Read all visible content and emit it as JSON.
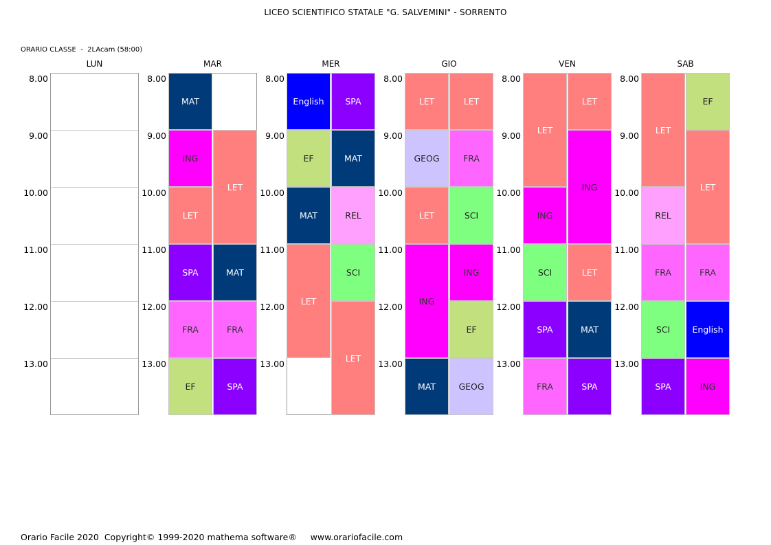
{
  "header": {
    "title": "LICEO SCIENTIFICO STATALE \"G. SALVEMINI\" - SORRENTO"
  },
  "class_info": {
    "label": "ORARIO CLASSE  -  2LAcam (58:00)"
  },
  "footer": {
    "text": "Orario Facile 2020  Copyright© 1999-2020 mathema software®     www.orariofacile.com"
  },
  "hours": [
    "8.00",
    "9.00",
    "10.00",
    "11.00",
    "12.00",
    "13.00"
  ],
  "subject_colors": {
    "MAT": {
      "bg": "#003a78",
      "fg": "#ffffff"
    },
    "ING": {
      "bg": "#ff00ff",
      "fg": "#333333"
    },
    "LET": {
      "bg": "#ff7f7f",
      "fg": "#ffffff"
    },
    "SPA": {
      "bg": "#8c00ff",
      "fg": "#ffffff"
    },
    "FRA": {
      "bg": "#ff66ff",
      "fg": "#333333"
    },
    "EF": {
      "bg": "#c2e07e",
      "fg": "#222222"
    },
    "English": {
      "bg": "#0000ff",
      "fg": "#ffffff"
    },
    "REL": {
      "bg": "#ffa0ff",
      "fg": "#222222"
    },
    "SCI": {
      "bg": "#7fff7f",
      "fg": "#222222"
    },
    "GEOG": {
      "bg": "#cdc4ff",
      "fg": "#222222"
    }
  },
  "days": [
    {
      "name": "LUN",
      "lessons": []
    },
    {
      "name": "MAR",
      "lessons": [
        {
          "subject": "MAT",
          "col": 0,
          "start": 0,
          "span": 1
        },
        {
          "subject": "ING",
          "col": 0,
          "start": 1,
          "span": 1
        },
        {
          "subject": "LET",
          "col": 1,
          "start": 1,
          "span": 2
        },
        {
          "subject": "LET",
          "col": 0,
          "start": 2,
          "span": 1
        },
        {
          "subject": "SPA",
          "col": 0,
          "start": 3,
          "span": 1
        },
        {
          "subject": "MAT",
          "col": 1,
          "start": 3,
          "span": 1
        },
        {
          "subject": "FRA",
          "col": 0,
          "start": 4,
          "span": 1
        },
        {
          "subject": "FRA",
          "col": 1,
          "start": 4,
          "span": 1
        },
        {
          "subject": "EF",
          "col": 0,
          "start": 5,
          "span": 1
        },
        {
          "subject": "SPA",
          "col": 1,
          "start": 5,
          "span": 1
        }
      ]
    },
    {
      "name": "MER",
      "lessons": [
        {
          "subject": "English",
          "col": 0,
          "start": 0,
          "span": 1
        },
        {
          "subject": "SPA",
          "col": 1,
          "start": 0,
          "span": 1
        },
        {
          "subject": "EF",
          "col": 0,
          "start": 1,
          "span": 1
        },
        {
          "subject": "MAT",
          "col": 1,
          "start": 1,
          "span": 1
        },
        {
          "subject": "MAT",
          "col": 0,
          "start": 2,
          "span": 1
        },
        {
          "subject": "REL",
          "col": 1,
          "start": 2,
          "span": 1
        },
        {
          "subject": "LET",
          "col": 0,
          "start": 3,
          "span": 2
        },
        {
          "subject": "SCI",
          "col": 1,
          "start": 3,
          "span": 1
        },
        {
          "subject": "LET",
          "col": 1,
          "start": 4,
          "span": 2
        }
      ]
    },
    {
      "name": "GIO",
      "lessons": [
        {
          "subject": "LET",
          "col": 0,
          "start": 0,
          "span": 1
        },
        {
          "subject": "LET",
          "col": 1,
          "start": 0,
          "span": 1
        },
        {
          "subject": "GEOG",
          "col": 0,
          "start": 1,
          "span": 1
        },
        {
          "subject": "FRA",
          "col": 1,
          "start": 1,
          "span": 1
        },
        {
          "subject": "LET",
          "col": 0,
          "start": 2,
          "span": 1
        },
        {
          "subject": "SCI",
          "col": 1,
          "start": 2,
          "span": 1
        },
        {
          "subject": "ING",
          "col": 0,
          "start": 3,
          "span": 2
        },
        {
          "subject": "ING",
          "col": 1,
          "start": 3,
          "span": 1
        },
        {
          "subject": "EF",
          "col": 1,
          "start": 4,
          "span": 1
        },
        {
          "subject": "MAT",
          "col": 0,
          "start": 5,
          "span": 1
        },
        {
          "subject": "GEOG",
          "col": 1,
          "start": 5,
          "span": 1
        }
      ]
    },
    {
      "name": "VEN",
      "lessons": [
        {
          "subject": "LET",
          "col": 0,
          "start": 0,
          "span": 2
        },
        {
          "subject": "LET",
          "col": 1,
          "start": 0,
          "span": 1
        },
        {
          "subject": "ING",
          "col": 1,
          "start": 1,
          "span": 2
        },
        {
          "subject": "ING",
          "col": 0,
          "start": 2,
          "span": 1
        },
        {
          "subject": "SCI",
          "col": 0,
          "start": 3,
          "span": 1
        },
        {
          "subject": "LET",
          "col": 1,
          "start": 3,
          "span": 1
        },
        {
          "subject": "SPA",
          "col": 0,
          "start": 4,
          "span": 1
        },
        {
          "subject": "MAT",
          "col": 1,
          "start": 4,
          "span": 1
        },
        {
          "subject": "FRA",
          "col": 0,
          "start": 5,
          "span": 1
        },
        {
          "subject": "SPA",
          "col": 1,
          "start": 5,
          "span": 1
        }
      ]
    },
    {
      "name": "SAB",
      "lessons": [
        {
          "subject": "LET",
          "col": 0,
          "start": 0,
          "span": 2
        },
        {
          "subject": "EF",
          "col": 1,
          "start": 0,
          "span": 1
        },
        {
          "subject": "LET",
          "col": 1,
          "start": 1,
          "span": 2
        },
        {
          "subject": "REL",
          "col": 0,
          "start": 2,
          "span": 1
        },
        {
          "subject": "FRA",
          "col": 0,
          "start": 3,
          "span": 1
        },
        {
          "subject": "FRA",
          "col": 1,
          "start": 3,
          "span": 1
        },
        {
          "subject": "SCI",
          "col": 0,
          "start": 4,
          "span": 1
        },
        {
          "subject": "English",
          "col": 1,
          "start": 4,
          "span": 1
        },
        {
          "subject": "SPA",
          "col": 0,
          "start": 5,
          "span": 1
        },
        {
          "subject": "ING",
          "col": 1,
          "start": 5,
          "span": 1
        }
      ]
    }
  ]
}
